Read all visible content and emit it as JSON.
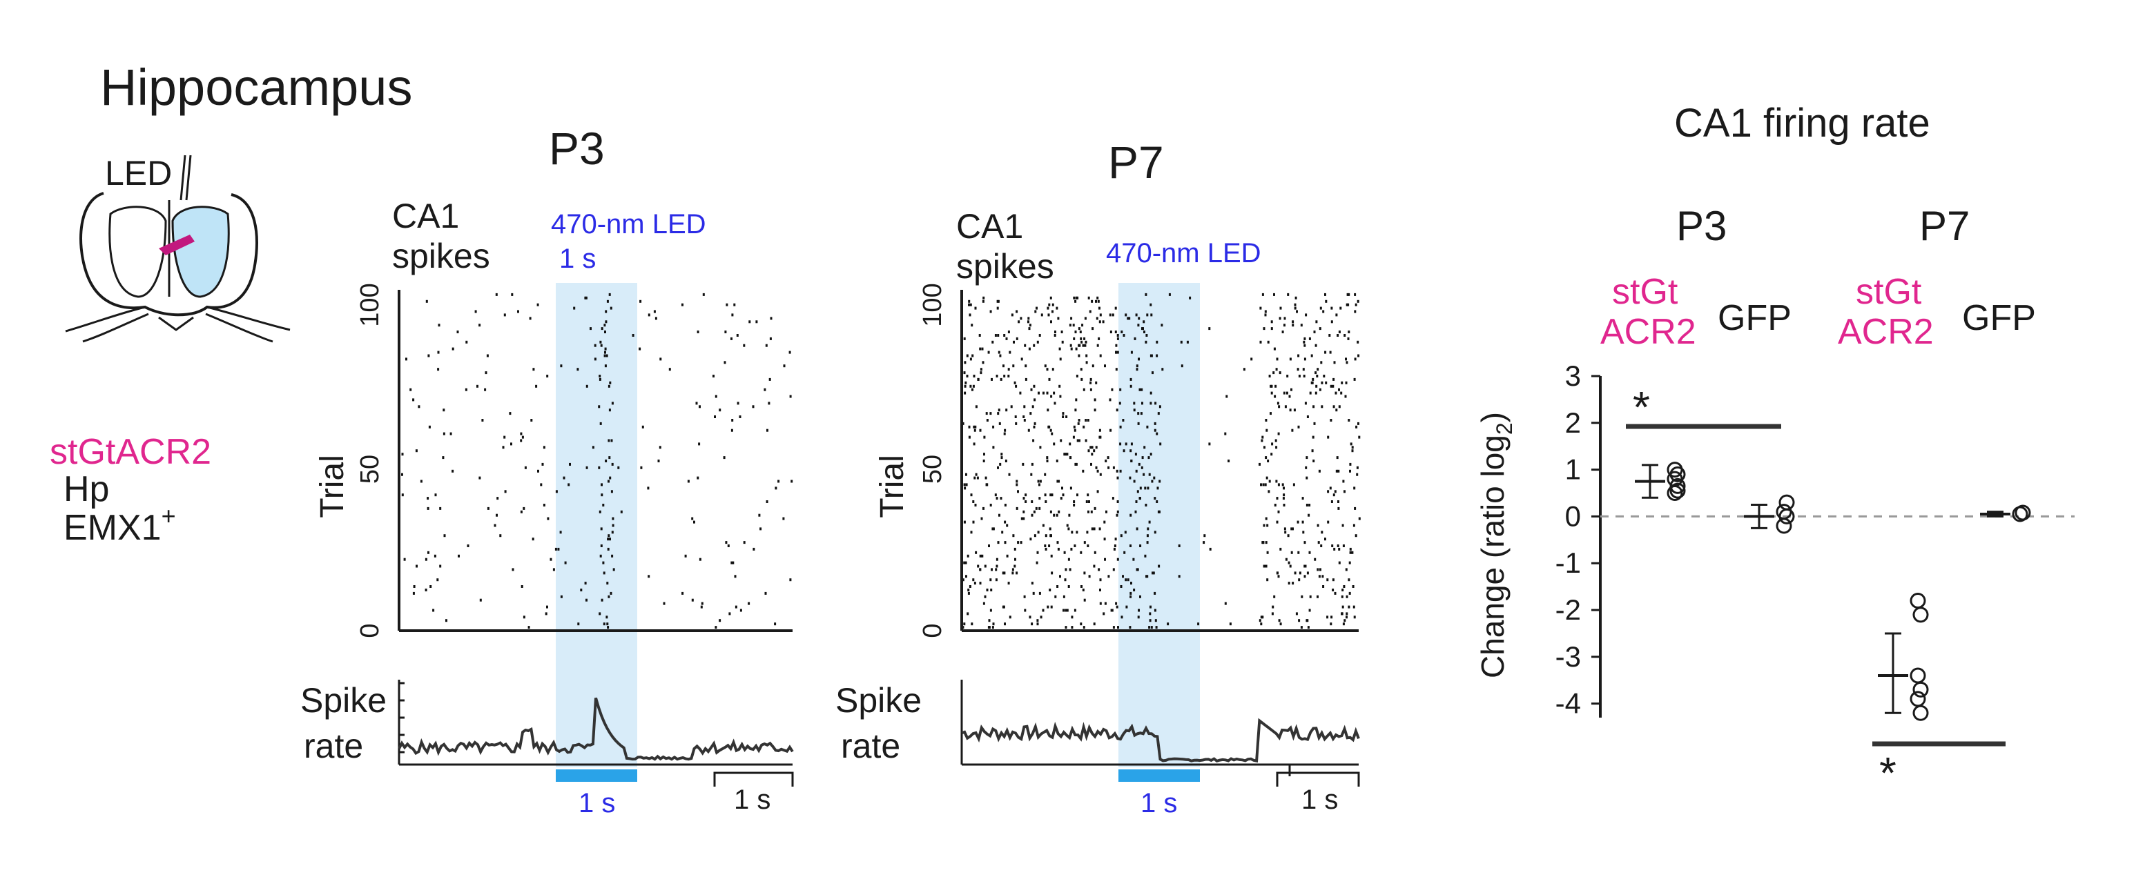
{
  "figure": {
    "region_title": "Hippocampus",
    "led_label": "LED",
    "genotype": {
      "opsin": "stGtACR2",
      "region": "Hp",
      "promoter": "EMX1",
      "promoter_sup": "+"
    }
  },
  "raster_panels": [
    {
      "id": "P3",
      "title": "P3",
      "spikes_label_line1": "CA1",
      "spikes_label_line2": "spikes",
      "led_label": "470-nm LED",
      "led_duration_top": "1 s",
      "led_duration_bottom": "1 s",
      "scale_bar_label": "1 s",
      "trial_axis_label": "Trial",
      "rate_label_line1": "Spike",
      "rate_label_line2": "rate"
    },
    {
      "id": "P7",
      "title": "P7",
      "spikes_label_line1": "CA1",
      "spikes_label_line2": "spikes",
      "led_label": "470-nm LED",
      "led_duration_bottom": "1 s",
      "scale_bar_label": "1 s",
      "trial_axis_label": "Trial",
      "rate_label_line1": "Spike",
      "rate_label_line2": "rate"
    }
  ],
  "summary": {
    "title": "CA1 firing rate",
    "groups": [
      "P3",
      "P7"
    ],
    "condition_opsin_line1": "stGt",
    "condition_opsin_line2": "ACR2",
    "condition_control": "GFP",
    "sig_marker": "*"
  },
  "chart_data": [
    {
      "type": "scatter",
      "title": "P3",
      "xlabel": "",
      "ylabel": "Trial",
      "ylim": [
        0,
        100
      ],
      "yticks": [
        0,
        50,
        100
      ],
      "stim_window": [
        0,
        1
      ],
      "x_range": [
        -2,
        2
      ],
      "spike_density": "sparse"
    },
    {
      "type": "line",
      "title": "",
      "ylabel": "Spike rate",
      "x_range": [
        -2,
        2
      ],
      "stim_window": [
        0,
        1
      ],
      "profile": "transient peak at light onset, then suppression during LED, recovery after",
      "scale_bar": "1 s"
    },
    {
      "type": "scatter",
      "title": "P7",
      "ylabel": "Trial",
      "ylim": [
        0,
        100
      ],
      "yticks": [
        0,
        50,
        100
      ],
      "stim_window": [
        0,
        1
      ],
      "x_range": [
        -2,
        2
      ],
      "spike_density": "dense"
    },
    {
      "type": "line",
      "title": "",
      "ylabel": "Spike rate",
      "x_range": [
        -2,
        2
      ],
      "stim_window": [
        0,
        1
      ],
      "profile": "strong suppression during LED, rebound after offset",
      "scale_bar": "1 s"
    },
    {
      "type": "scatter",
      "title": "CA1 firing rate",
      "ylabel": "Change (ratio log2)",
      "ylim": [
        -4.3,
        3
      ],
      "yticks": [
        3,
        2,
        1,
        0,
        -1,
        -2,
        -3,
        -4
      ],
      "reference_line": 0,
      "series": [
        {
          "group": "P3",
          "condition": "stGtACR2",
          "mean": 0.75,
          "err_low": 0.4,
          "err_high": 1.1,
          "points": [
            0.5,
            0.65,
            0.8,
            0.9,
            1.0,
            0.55
          ]
        },
        {
          "group": "P3",
          "condition": "GFP",
          "mean": 0.0,
          "err_low": -0.25,
          "err_high": 0.25,
          "points": [
            -0.2,
            0.0,
            0.1,
            0.3
          ]
        },
        {
          "group": "P7",
          "condition": "stGtACR2",
          "mean": -3.4,
          "err_low": -4.2,
          "err_high": -2.5,
          "points": [
            -1.8,
            -2.1,
            -3.4,
            -3.7,
            -3.9,
            -4.2
          ]
        },
        {
          "group": "P7",
          "condition": "GFP",
          "mean": 0.05,
          "err_low": 0.0,
          "err_high": 0.1,
          "points": [
            0.05,
            0.08
          ]
        }
      ],
      "significance": [
        {
          "group": "P3",
          "position": "above",
          "label": "*"
        },
        {
          "group": "P7",
          "position": "below",
          "label": "*"
        }
      ]
    }
  ]
}
